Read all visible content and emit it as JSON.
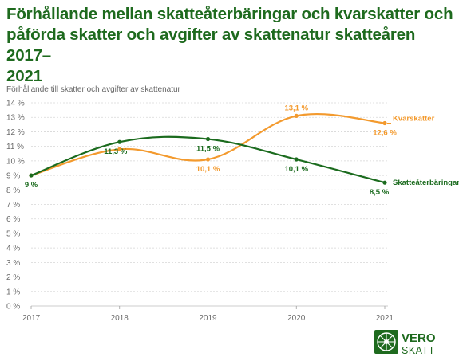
{
  "title_lines": [
    "Förhållande mellan skatteåterbäringar och kvarskatter och",
    "påförda skatter och avgifter av skattenatur skatteåren 2017–",
    "2021"
  ],
  "chart_data": {
    "type": "line",
    "title": "Förhållande mellan skatteåterbäringar och kvarskatter och påförda skatter och avgifter av skattenatur skatteåren 2017–2021",
    "ylabel": "Förhållande till skatter och avgifter av skattenatur",
    "xlabel": "",
    "x": [
      "2017",
      "2018",
      "2019",
      "2020",
      "2021"
    ],
    "ylim": [
      0,
      14
    ],
    "yticks": [
      "0 %",
      "1 %",
      "2 %",
      "3 %",
      "4 %",
      "5 %",
      "6 %",
      "7 %",
      "8 %",
      "9 %",
      "10 %",
      "11 %",
      "12 %",
      "13 %",
      "14 %"
    ],
    "grid": true,
    "legend": "inline-right",
    "series": [
      {
        "name": "Kvarskatter",
        "color": "#f39a2e",
        "values": [
          9.0,
          10.8,
          10.1,
          13.1,
          12.6
        ],
        "labels": [
          "",
          "",
          "10,1 %",
          "13,1 %",
          "12,6 %"
        ]
      },
      {
        "name": "Skatteåterbäringar",
        "color": "#1b6b1e",
        "values": [
          9.0,
          11.3,
          11.5,
          10.1,
          8.5
        ],
        "labels": [
          "9 %",
          "11,3 %",
          "11,5 %",
          "10,1 %",
          "8,5 %"
        ]
      }
    ]
  },
  "logo": {
    "line1": "VERO",
    "line2": "SKATT",
    "color": "#1e6a1e",
    "icon": "vero-emblem-icon"
  }
}
